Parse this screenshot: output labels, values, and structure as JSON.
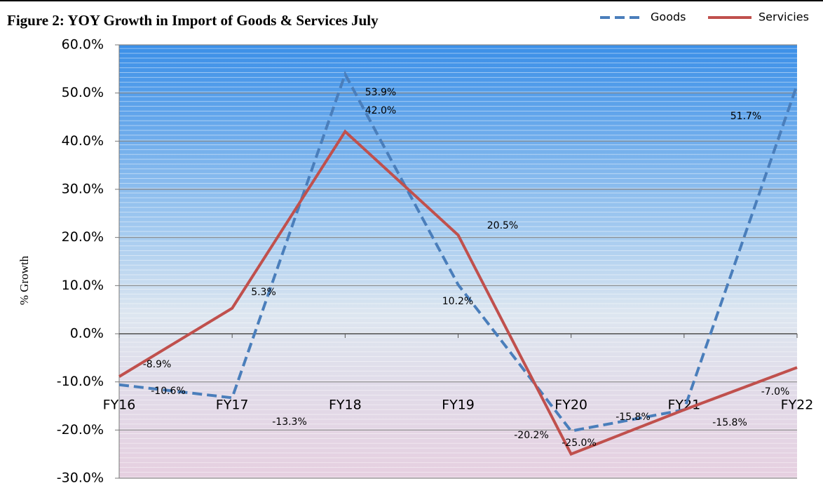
{
  "chart_data": {
    "type": "line",
    "title": "Figure 2: YOY Growth in Import of Goods & Services July",
    "y_label": "% Growth",
    "categories": [
      "FY16",
      "FY17",
      "FY18",
      "FY19",
      "FY20",
      "FY21",
      "FY22"
    ],
    "series": [
      {
        "name": "Goods",
        "color": "#4a7ebb",
        "dashed": true,
        "values": [
          -10.6,
          -13.3,
          53.9,
          10.2,
          -20.2,
          -15.8,
          51.7
        ],
        "value_labels": [
          "-10.6%",
          "-13.3%",
          "53.9%",
          "10.2%",
          "-20.2%",
          "-15.8%",
          "51.7%"
        ]
      },
      {
        "name": "Servicies",
        "color": "#c0504d",
        "dashed": false,
        "values": [
          -8.9,
          5.3,
          42.0,
          20.5,
          -25.0,
          -15.8,
          -7.0
        ],
        "value_labels": [
          "-8.9%",
          "5.3%",
          "42.0%",
          "20.5%",
          "-25.0%",
          "-15.8%",
          "-7.0%"
        ]
      }
    ],
    "ylim": [
      -30,
      60
    ],
    "yticks": [
      {
        "value": -30,
        "label": "-30.0%"
      },
      {
        "value": -20,
        "label": "-20.0%"
      },
      {
        "value": -10,
        "label": "-10.0%"
      },
      {
        "value": 0,
        "label": "0.0%"
      },
      {
        "value": 10,
        "label": "10.0%"
      },
      {
        "value": 20,
        "label": "20.0%"
      },
      {
        "value": 30,
        "label": "30.0%"
      },
      {
        "value": 40,
        "label": "40.0%"
      },
      {
        "value": 50,
        "label": "50.0%"
      },
      {
        "value": 60,
        "label": "60.0%"
      }
    ],
    "grid": true,
    "legend": "top-right"
  }
}
